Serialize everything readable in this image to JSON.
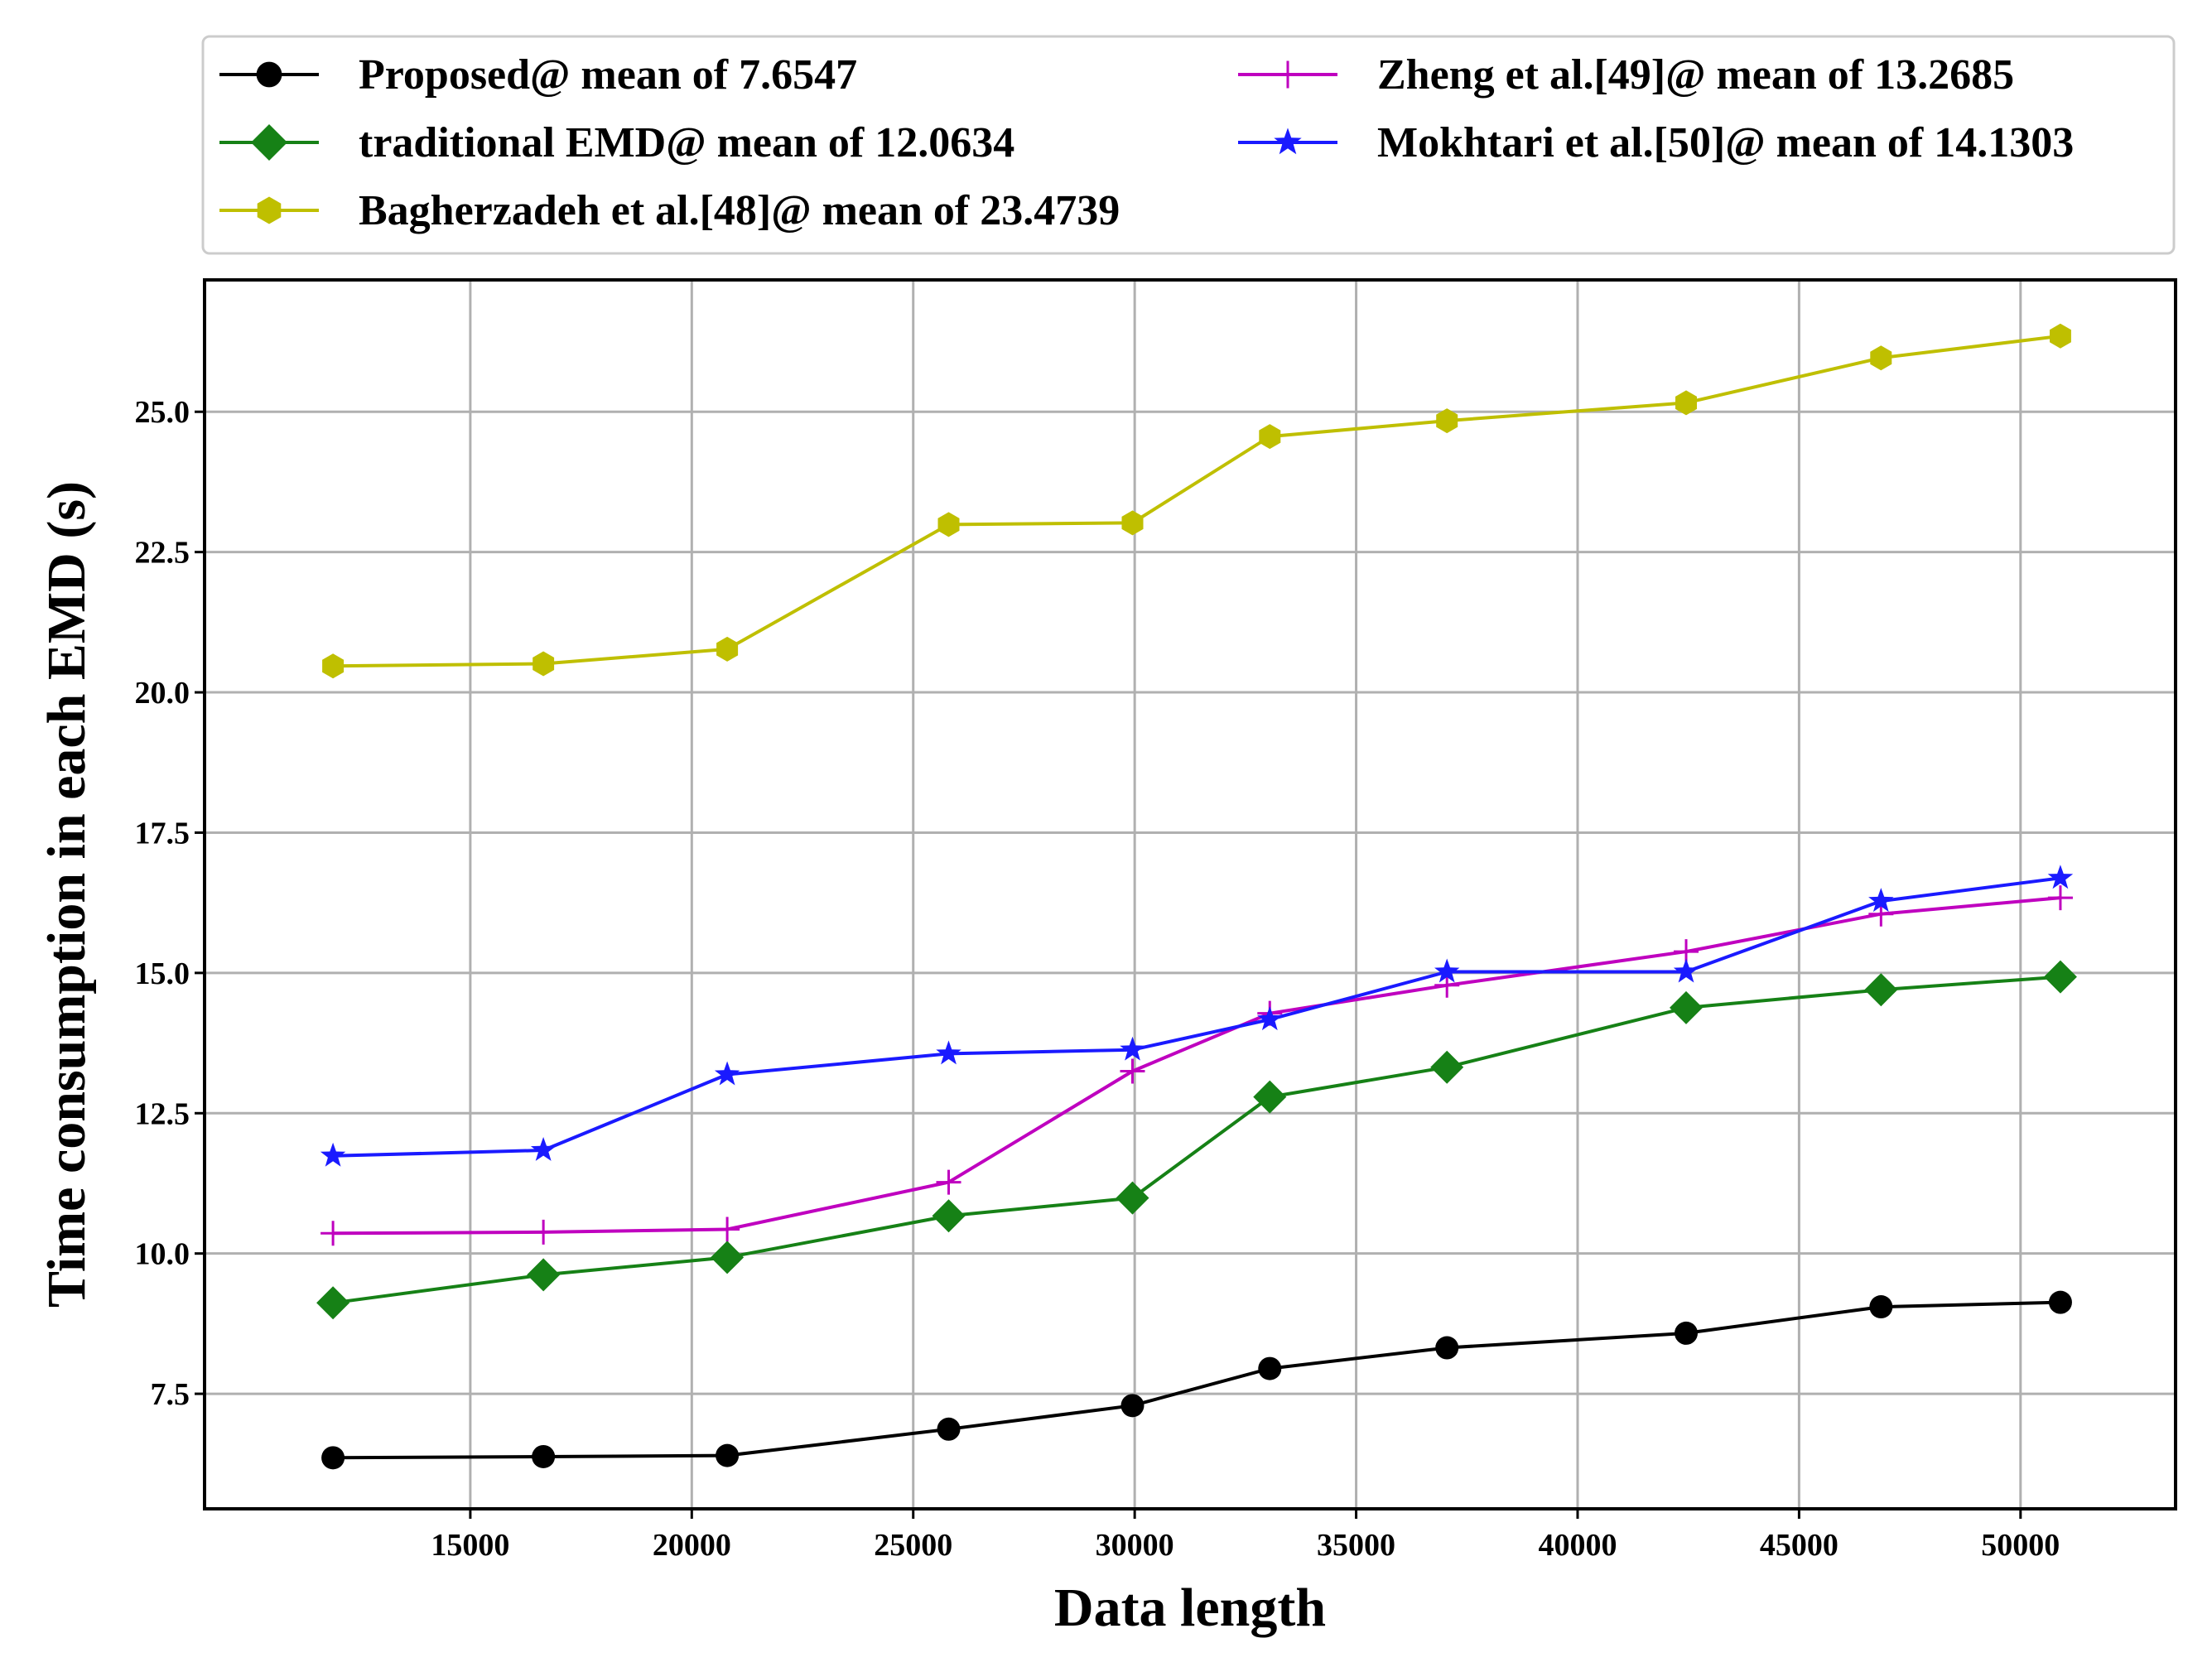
{
  "chart_data": {
    "type": "line",
    "title": "",
    "xlabel": "Data length",
    "ylabel": "Time consumption in each EMD (s)",
    "xlim": [
      9000,
      53500
    ],
    "ylim": [
      5.45,
      27.35
    ],
    "x_ticks": [
      15000,
      20000,
      25000,
      30000,
      35000,
      40000,
      45000,
      50000
    ],
    "y_ticks": [
      7.5,
      10.0,
      12.5,
      15.0,
      17.5,
      20.0,
      22.5,
      25.0
    ],
    "x_tick_labels": [
      "15000",
      "20000",
      "25000",
      "30000",
      "35000",
      "40000",
      "45000",
      "50000"
    ],
    "y_tick_labels": [
      "7.5",
      "10.0",
      "12.5",
      "15.0",
      "17.5",
      "20.0",
      "22.5",
      "25.0"
    ],
    "grid": true,
    "legend_position": "top (outside plot, two columns)",
    "x": [
      11900,
      16650,
      20800,
      25800,
      29950,
      33050,
      37050,
      42450,
      46850,
      50900
    ],
    "series": [
      {
        "name": "Proposed@ mean of 7.6547",
        "color": "#000000",
        "marker": "circle",
        "values": [
          6.36,
          6.38,
          6.4,
          6.87,
          7.29,
          7.95,
          8.32,
          8.58,
          9.05,
          9.13
        ]
      },
      {
        "name": "traditional EMD@ mean of 12.0634",
        "color": "#168116",
        "marker": "diamond",
        "values": [
          9.12,
          9.62,
          9.93,
          10.67,
          10.99,
          12.79,
          13.32,
          14.38,
          14.7,
          14.93
        ]
      },
      {
        "name": "Bagherzadeh et al.[48]@ mean of 23.4739",
        "color": "#bfbf00",
        "marker": "hexagon",
        "values": [
          20.47,
          20.51,
          20.77,
          22.99,
          23.02,
          24.56,
          24.84,
          25.16,
          25.96,
          26.35
        ]
      },
      {
        "name": "Zheng et al.[49]@ mean of 13.2685",
        "color": "#bf00bf",
        "marker": "plus",
        "values": [
          10.36,
          10.38,
          10.43,
          11.27,
          13.25,
          14.28,
          14.78,
          15.38,
          16.05,
          16.34
        ]
      },
      {
        "name": "Mokhtari et al.[50]@ mean of 14.1303",
        "color": "#1a1aff",
        "marker": "star",
        "values": [
          11.74,
          11.84,
          13.19,
          13.56,
          13.63,
          14.17,
          15.02,
          15.02,
          16.28,
          16.69
        ]
      }
    ]
  }
}
